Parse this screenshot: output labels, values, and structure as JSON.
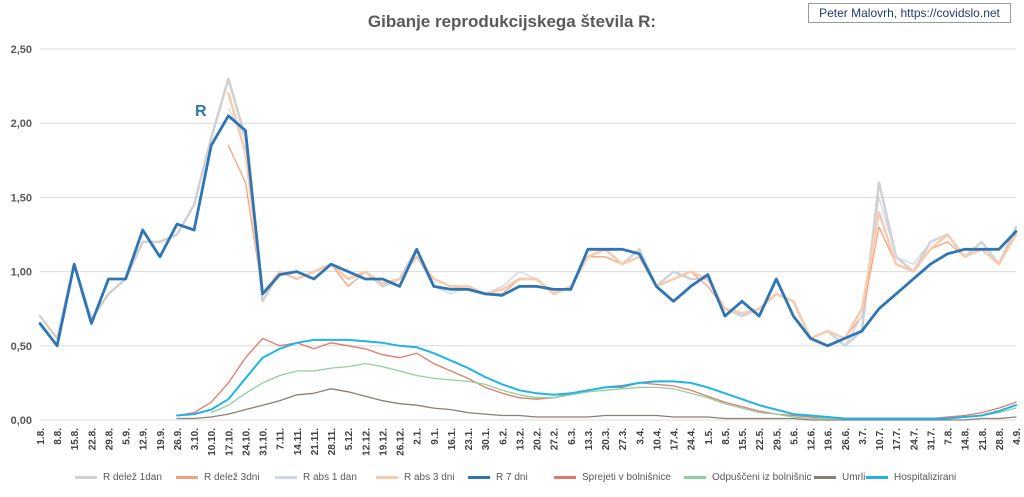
{
  "credit": "Peter Malovrh, https://covidslo.net",
  "chart_data": {
    "type": "line",
    "title": "Gibanje reprodukcijskega števila R:",
    "annotation": "R",
    "ylim": [
      0,
      2.5
    ],
    "yticks": [
      "0,00",
      "0,50",
      "1,00",
      "1,50",
      "2,00",
      "2,50"
    ],
    "grid": true,
    "legend_position": "bottom",
    "x_dates": [
      "1.8.",
      "8.8.",
      "15.8.",
      "22.8.",
      "29.8.",
      "5.9.",
      "12.9.",
      "19.9.",
      "26.9.",
      "3.10.",
      "10.10.",
      "17.10.",
      "24.10.",
      "31.10.",
      "7.11.",
      "14.11.",
      "21.11.",
      "28.11.",
      "5.12.",
      "12.12.",
      "19.12.",
      "26.12.",
      "2.1.",
      "9.1.",
      "16.1.",
      "23.1.",
      "30.1.",
      "6.2.",
      "13.2.",
      "20.2.",
      "27.2.",
      "6.3.",
      "13.3.",
      "20.3.",
      "27.3.",
      "3.4.",
      "10.4.",
      "17.4.",
      "24.4.",
      "1.5.",
      "8.5.",
      "15.5.",
      "22.5.",
      "29.5.",
      "5.6.",
      "12.6.",
      "19.6.",
      "26.6.",
      "3.7.",
      "10.7.",
      "17.7.",
      "24.7.",
      "31.7.",
      "7.8.",
      "14.8.",
      "21.8.",
      "28.8.",
      "4.9."
    ],
    "series": [
      {
        "name": "R delež 1dan",
        "color": "#d0d0d0",
        "width": 2.5,
        "values": [
          0.7,
          0.55,
          1.05,
          0.68,
          0.85,
          0.95,
          1.2,
          1.2,
          1.25,
          1.45,
          1.9,
          2.3,
          1.9,
          0.8,
          1.0,
          0.95,
          1.0,
          1.05,
          0.95,
          1.0,
          0.9,
          0.95,
          1.15,
          0.9,
          0.88,
          0.9,
          0.85,
          0.88,
          0.95,
          0.95,
          0.85,
          0.9,
          1.1,
          1.15,
          1.05,
          1.15,
          0.9,
          1.0,
          0.95,
          0.95,
          0.75,
          0.7,
          0.75,
          0.85,
          0.8,
          0.55,
          0.6,
          0.5,
          0.6,
          1.6,
          1.1,
          1.0,
          1.2,
          1.25,
          1.1,
          1.2,
          1.05,
          1.3
        ]
      },
      {
        "name": "R delež 3dni",
        "color": "#f3a17d",
        "width": 1.3,
        "values": [
          null,
          null,
          null,
          null,
          null,
          null,
          null,
          null,
          null,
          null,
          null,
          1.85,
          1.6,
          0.85,
          1.0,
          0.95,
          1.0,
          1.05,
          0.9,
          1.0,
          0.9,
          0.95,
          1.1,
          0.95,
          0.9,
          0.88,
          0.85,
          0.85,
          0.95,
          0.95,
          0.85,
          0.9,
          1.1,
          1.1,
          1.05,
          1.1,
          0.9,
          0.95,
          1.0,
          0.9,
          0.75,
          0.72,
          0.75,
          0.85,
          0.8,
          0.55,
          0.6,
          0.55,
          0.7,
          1.3,
          1.05,
          1.0,
          1.15,
          1.2,
          1.1,
          1.15,
          1.05,
          1.25
        ]
      },
      {
        "name": "R abs 1 dan",
        "color": "#cfd7e8",
        "width": 1.3,
        "values": [
          null,
          null,
          null,
          null,
          null,
          null,
          null,
          null,
          null,
          null,
          null,
          2.1,
          1.9,
          0.85,
          1.0,
          1.0,
          1.0,
          1.05,
          0.95,
          1.0,
          0.9,
          0.95,
          1.1,
          0.9,
          0.85,
          0.9,
          0.85,
          0.9,
          1.0,
          0.95,
          0.85,
          0.9,
          1.1,
          1.15,
          1.05,
          1.15,
          0.9,
          1.0,
          1.0,
          0.95,
          0.75,
          0.7,
          0.75,
          0.85,
          0.8,
          0.55,
          0.6,
          0.5,
          0.7,
          1.5,
          1.1,
          1.05,
          1.2,
          1.25,
          1.1,
          1.2,
          1.05,
          1.25
        ]
      },
      {
        "name": "R abs 3 dni",
        "color": "#f8cbad",
        "width": 2.5,
        "values": [
          null,
          null,
          null,
          null,
          null,
          null,
          null,
          null,
          null,
          null,
          null,
          2.2,
          1.8,
          0.85,
          1.0,
          0.95,
          1.0,
          1.05,
          0.95,
          1.0,
          0.92,
          0.95,
          1.1,
          0.95,
          0.9,
          0.9,
          0.85,
          0.88,
          0.95,
          0.95,
          0.85,
          0.9,
          1.1,
          1.15,
          1.05,
          1.1,
          0.9,
          0.95,
          1.0,
          0.95,
          0.75,
          0.72,
          0.75,
          0.85,
          0.8,
          0.55,
          0.6,
          0.55,
          0.75,
          1.4,
          1.05,
          1.0,
          1.15,
          1.25,
          1.1,
          1.15,
          1.05,
          1.25
        ]
      },
      {
        "name": "R 7 dni",
        "color": "#2e75b6",
        "width": 2.8,
        "values": [
          0.65,
          0.5,
          1.05,
          0.65,
          0.95,
          0.95,
          1.28,
          1.1,
          1.32,
          1.28,
          1.85,
          2.05,
          1.95,
          0.85,
          0.98,
          1.0,
          0.95,
          1.05,
          1.0,
          0.95,
          0.95,
          0.9,
          1.15,
          0.9,
          0.88,
          0.88,
          0.85,
          0.84,
          0.9,
          0.9,
          0.88,
          0.88,
          1.15,
          1.15,
          1.15,
          1.12,
          0.9,
          0.8,
          0.9,
          0.98,
          0.7,
          0.8,
          0.7,
          0.95,
          0.7,
          0.55,
          0.5,
          0.55,
          0.6,
          0.75,
          0.85,
          0.95,
          1.05,
          1.12,
          1.15,
          1.15,
          1.15,
          1.27
        ]
      },
      {
        "name": "Sprejeti v bolnišnice",
        "color": "#e07b6b",
        "width": 1.3,
        "values": [
          null,
          null,
          null,
          null,
          null,
          null,
          null,
          null,
          0.03,
          0.05,
          0.12,
          0.25,
          0.42,
          0.55,
          0.5,
          0.52,
          0.48,
          0.52,
          0.5,
          0.48,
          0.44,
          0.42,
          0.45,
          0.38,
          0.33,
          0.28,
          0.22,
          0.18,
          0.15,
          0.14,
          0.15,
          0.18,
          0.2,
          0.22,
          0.22,
          0.25,
          0.24,
          0.23,
          0.2,
          0.16,
          0.12,
          0.09,
          0.06,
          0.04,
          0.03,
          0.02,
          0.01,
          0.01,
          0.01,
          0.01,
          0.01,
          0.01,
          0.01,
          0.02,
          0.03,
          0.05,
          0.08,
          0.12
        ]
      },
      {
        "name": "Odpuščeni iz bolnišnic",
        "color": "#8fd19e",
        "width": 1.3,
        "values": [
          null,
          null,
          null,
          null,
          null,
          null,
          null,
          null,
          null,
          null,
          0.05,
          0.1,
          0.18,
          0.25,
          0.3,
          0.33,
          0.33,
          0.35,
          0.36,
          0.38,
          0.36,
          0.33,
          0.3,
          0.28,
          0.27,
          0.26,
          0.24,
          0.2,
          0.17,
          0.15,
          0.15,
          0.17,
          0.19,
          0.2,
          0.21,
          0.22,
          0.22,
          0.21,
          0.18,
          0.15,
          0.11,
          0.08,
          0.05,
          0.04,
          0.02,
          0.01,
          0.01,
          0.01,
          0.01,
          0.01,
          0.01,
          0.01,
          0.01,
          0.01,
          0.02,
          0.03,
          0.05,
          0.08
        ]
      },
      {
        "name": "Umrli",
        "color": "#8c7d74",
        "width": 1.3,
        "values": [
          null,
          null,
          null,
          null,
          null,
          null,
          null,
          null,
          0.01,
          0.01,
          0.02,
          0.04,
          0.07,
          0.1,
          0.13,
          0.17,
          0.18,
          0.21,
          0.19,
          0.16,
          0.13,
          0.11,
          0.1,
          0.08,
          0.07,
          0.05,
          0.04,
          0.03,
          0.03,
          0.02,
          0.02,
          0.02,
          0.02,
          0.03,
          0.03,
          0.03,
          0.03,
          0.02,
          0.02,
          0.02,
          0.01,
          0.01,
          0.01,
          0.01,
          0.01,
          0.0,
          0.0,
          0.0,
          0.0,
          0.0,
          0.0,
          0.0,
          0.0,
          0.0,
          0.0,
          0.01,
          0.01,
          0.02
        ]
      },
      {
        "name": "Hospitalizirani",
        "color": "#21b3e8",
        "width": 2.0,
        "values": [
          null,
          null,
          null,
          null,
          null,
          null,
          null,
          null,
          0.03,
          0.04,
          0.07,
          0.14,
          0.28,
          0.42,
          0.48,
          0.52,
          0.54,
          0.54,
          0.54,
          0.53,
          0.52,
          0.5,
          0.49,
          0.45,
          0.4,
          0.35,
          0.29,
          0.24,
          0.2,
          0.18,
          0.17,
          0.18,
          0.2,
          0.22,
          0.23,
          0.25,
          0.26,
          0.26,
          0.25,
          0.22,
          0.18,
          0.14,
          0.1,
          0.07,
          0.04,
          0.03,
          0.02,
          0.01,
          0.01,
          0.01,
          0.01,
          0.01,
          0.01,
          0.01,
          0.02,
          0.03,
          0.06,
          0.1
        ]
      }
    ]
  }
}
